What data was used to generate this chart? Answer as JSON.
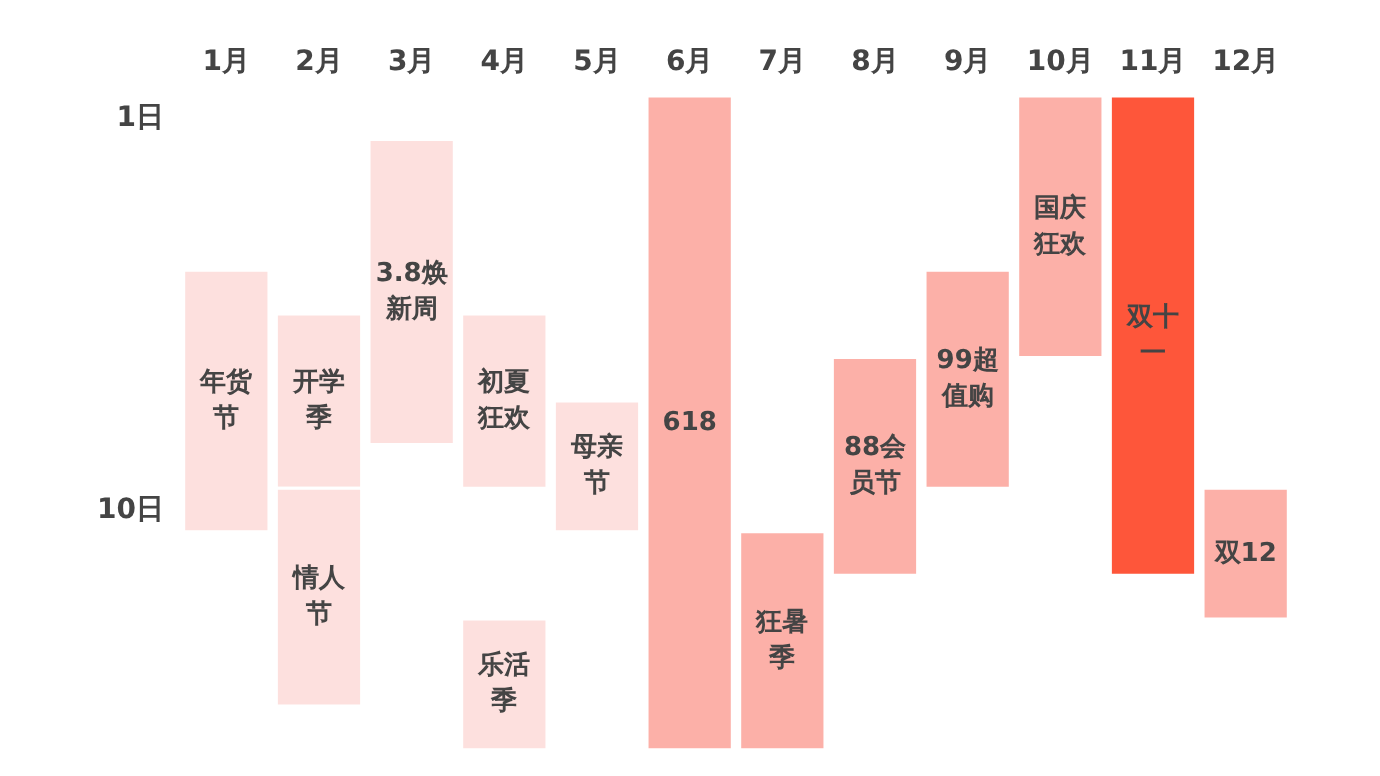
{
  "chart_data": {
    "type": "bar",
    "categories": [
      "1月",
      "2月",
      "3月",
      "4月",
      "5月",
      "6月",
      "7月",
      "8月",
      "9月",
      "10月",
      "11月",
      "12月"
    ],
    "ylim": [
      15.6,
      0.5
    ],
    "yticks": [
      {
        "value": 1,
        "label": "1日"
      },
      {
        "value": 10,
        "label": "10日"
      }
    ],
    "series": [
      {
        "name": "年货节",
        "color": "#fde0de",
        "base": [
          4.5,
          null,
          null,
          null,
          null,
          null,
          null,
          null,
          null,
          null,
          null,
          null
        ],
        "values": [
          6,
          null,
          null,
          null,
          null,
          null,
          null,
          null,
          null,
          null,
          null,
          null
        ]
      },
      {
        "name": "开学季",
        "color": "#fde0de",
        "base": [
          null,
          5.5,
          null,
          null,
          null,
          null,
          null,
          null,
          null,
          null,
          null,
          null
        ],
        "values": [
          null,
          4,
          null,
          null,
          null,
          null,
          null,
          null,
          null,
          null,
          null,
          null
        ]
      },
      {
        "name": "情人节",
        "color": "#fde0de",
        "base": [
          null,
          9.5,
          null,
          null,
          null,
          null,
          null,
          null,
          null,
          null,
          null,
          null
        ],
        "values": [
          null,
          5,
          null,
          null,
          null,
          null,
          null,
          null,
          null,
          null,
          null,
          null
        ]
      },
      {
        "name": "3.8焕新周",
        "color": "#fde0de",
        "base": [
          null,
          null,
          1.5,
          null,
          null,
          null,
          null,
          null,
          null,
          null,
          null,
          null
        ],
        "values": [
          null,
          null,
          7,
          null,
          null,
          null,
          null,
          null,
          null,
          null,
          null,
          null
        ]
      },
      {
        "name": "初夏狂欢",
        "color": "#fde0de",
        "base": [
          null,
          null,
          null,
          5.5,
          null,
          null,
          null,
          null,
          null,
          null,
          null,
          null
        ],
        "values": [
          null,
          null,
          null,
          4,
          null,
          null,
          null,
          null,
          null,
          null,
          null,
          null
        ]
      },
      {
        "name": "乐活季",
        "color": "#fde0de",
        "base": [
          null,
          null,
          null,
          12.5,
          null,
          null,
          null,
          null,
          null,
          null,
          null,
          null
        ],
        "values": [
          null,
          null,
          null,
          3,
          null,
          null,
          null,
          null,
          null,
          null,
          null,
          null
        ]
      },
      {
        "name": "母亲节",
        "color": "#fde0de",
        "base": [
          null,
          null,
          null,
          null,
          7.5,
          null,
          null,
          null,
          null,
          null,
          null,
          null
        ],
        "values": [
          null,
          null,
          null,
          null,
          3,
          null,
          null,
          null,
          null,
          null,
          null,
          null
        ]
      },
      {
        "name": "618",
        "color": "#fcb0a8",
        "base": [
          null,
          null,
          null,
          null,
          null,
          0.5,
          null,
          null,
          null,
          null,
          null,
          null
        ],
        "values": [
          null,
          null,
          null,
          null,
          null,
          15,
          null,
          null,
          null,
          null,
          null,
          null
        ]
      },
      {
        "name": "狂暑季",
        "color": "#fcb0a8",
        "base": [
          null,
          null,
          null,
          null,
          null,
          null,
          10.5,
          null,
          null,
          null,
          null,
          null
        ],
        "values": [
          null,
          null,
          null,
          null,
          null,
          null,
          5,
          null,
          null,
          null,
          null,
          null
        ]
      },
      {
        "name": "88会员节",
        "color": "#fcb0a8",
        "base": [
          null,
          null,
          null,
          null,
          null,
          null,
          null,
          6.5,
          null,
          null,
          null,
          null
        ],
        "values": [
          null,
          null,
          null,
          null,
          null,
          null,
          null,
          5,
          null,
          null,
          null,
          null
        ]
      },
      {
        "name": "99超值购",
        "color": "#fcb0a8",
        "base": [
          null,
          null,
          null,
          null,
          null,
          null,
          null,
          null,
          4.5,
          null,
          null,
          null
        ],
        "values": [
          null,
          null,
          null,
          null,
          null,
          null,
          null,
          null,
          5,
          null,
          null,
          null
        ]
      },
      {
        "name": "国庆狂欢",
        "color": "#fcb0a8",
        "base": [
          null,
          null,
          null,
          null,
          null,
          null,
          null,
          null,
          null,
          0.5,
          null,
          null
        ],
        "values": [
          null,
          null,
          null,
          null,
          null,
          null,
          null,
          null,
          null,
          6,
          null,
          null
        ]
      },
      {
        "name": "双十一",
        "color": "#fe563a",
        "base": [
          null,
          null,
          null,
          null,
          null,
          null,
          null,
          null,
          null,
          null,
          0.5,
          null
        ],
        "values": [
          null,
          null,
          null,
          null,
          null,
          null,
          null,
          null,
          null,
          null,
          11,
          null
        ]
      },
      {
        "name": "双12",
        "color": "#fcb0a8",
        "base": [
          null,
          null,
          null,
          null,
          null,
          null,
          null,
          null,
          null,
          null,
          null,
          9.5
        ],
        "values": [
          null,
          null,
          null,
          null,
          null,
          null,
          null,
          null,
          null,
          null,
          null,
          3
        ]
      }
    ]
  }
}
